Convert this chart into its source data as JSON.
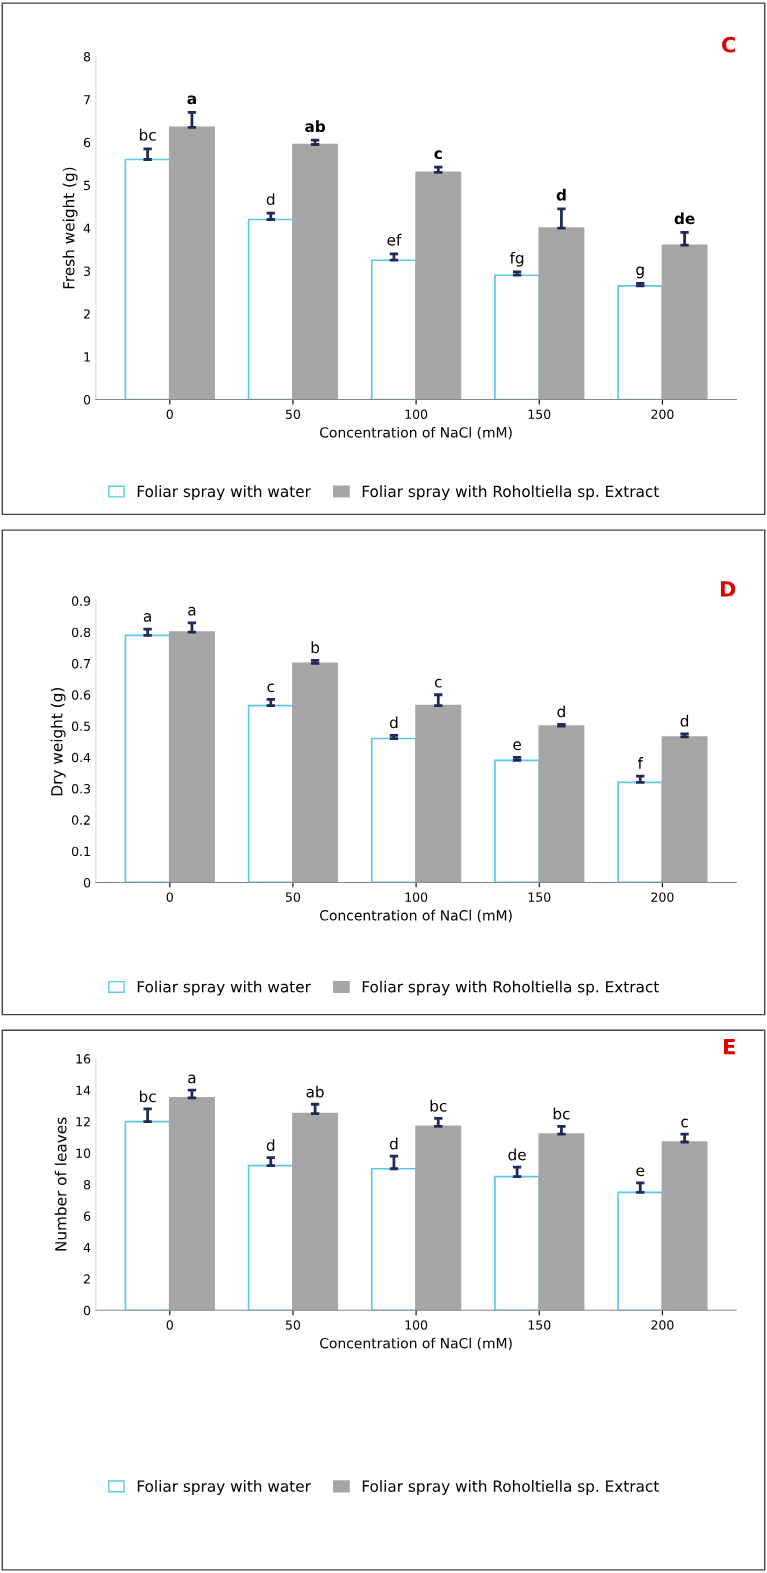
{
  "chart_data": [
    {
      "type": "bar",
      "title": "C",
      "xlabel": "Concentration of NaCl (mM)",
      "ylabel": "Fresh weight (g)",
      "categories": [
        "0",
        "50",
        "100",
        "150",
        "200"
      ],
      "ylim": [
        0,
        8
      ],
      "yticks": [
        0,
        1,
        2,
        3,
        4,
        5,
        6,
        7,
        8
      ],
      "legend": "bottom",
      "grid": false,
      "series": [
        {
          "name": "Foliar spray with water",
          "color": "#ffffff",
          "values": [
            5.6,
            4.2,
            3.25,
            2.9,
            2.65
          ],
          "errors": [
            0.25,
            0.15,
            0.15,
            0.08,
            0.06
          ],
          "value_labels": [
            "bc",
            "d",
            "ef",
            "fg",
            "g"
          ]
        },
        {
          "name": "Foliar spray with Roholtiella sp. Extract",
          "color": "#a6a6a6",
          "values": [
            6.35,
            5.95,
            5.3,
            4.0,
            3.6
          ],
          "errors": [
            0.35,
            0.1,
            0.12,
            0.45,
            0.3
          ],
          "value_labels": [
            "a",
            "ab",
            "c",
            "d",
            "de"
          ]
        }
      ]
    },
    {
      "type": "bar",
      "title": "D",
      "xlabel": "Concentration of NaCl (mM)",
      "ylabel": "Dry weight (g)",
      "categories": [
        "0",
        "50",
        "100",
        "150",
        "200"
      ],
      "ylim": [
        0,
        0.9
      ],
      "yticks": [
        0,
        0.1,
        0.2,
        0.3,
        0.4,
        0.5,
        0.6,
        0.7,
        0.8,
        0.9
      ],
      "legend": "bottom",
      "grid": false,
      "series": [
        {
          "name": "Foliar spray with water",
          "color": "#ffffff",
          "values": [
            0.79,
            0.565,
            0.46,
            0.39,
            0.32
          ],
          "errors": [
            0.02,
            0.02,
            0.01,
            0.01,
            0.02
          ],
          "value_labels": [
            "a",
            "c",
            "d",
            "e",
            "f"
          ]
        },
        {
          "name": "Foliar spray with Roholtiella sp. Extract",
          "color": "#a6a6a6",
          "values": [
            0.8,
            0.7,
            0.565,
            0.5,
            0.465
          ],
          "errors": [
            0.03,
            0.01,
            0.035,
            0.005,
            0.01
          ],
          "value_labels": [
            "a",
            "b",
            "c",
            "d",
            "d"
          ]
        }
      ]
    },
    {
      "type": "bar",
      "title": "E",
      "xlabel": "Concentration of NaCl (mM)",
      "ylabel": "Number of leaves",
      "categories": [
        "0",
        "50",
        "100",
        "150",
        "200"
      ],
      "ylim": [
        0,
        16
      ],
      "yticks": [
        0,
        2,
        4,
        6,
        8,
        10,
        12,
        14,
        16
      ],
      "legend": "bottom",
      "grid": false,
      "series": [
        {
          "name": "Foliar spray with water",
          "color": "#ffffff",
          "values": [
            12.0,
            9.2,
            9.0,
            8.5,
            7.5
          ],
          "errors": [
            0.8,
            0.5,
            0.8,
            0.6,
            0.6
          ],
          "value_labels": [
            "bc",
            "d",
            "d",
            "de",
            "e"
          ]
        },
        {
          "name": "Foliar spray with Roholtiella sp. Extract",
          "color": "#a6a6a6",
          "values": [
            13.5,
            12.5,
            11.7,
            11.2,
            10.7
          ],
          "errors": [
            0.5,
            0.6,
            0.5,
            0.5,
            0.5
          ],
          "value_labels": [
            "a",
            "ab",
            "bc",
            "bc",
            "c"
          ]
        }
      ]
    }
  ]
}
